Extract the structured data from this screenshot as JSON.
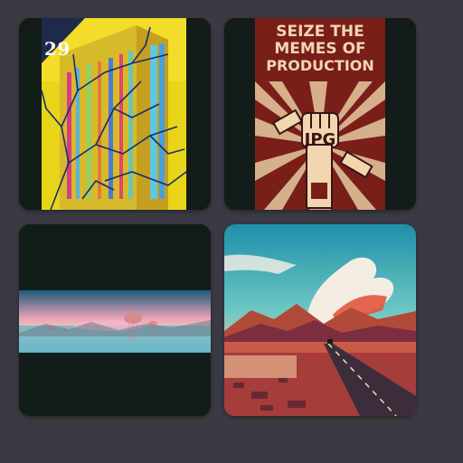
{
  "gallery": {
    "items": [
      {
        "name": "building-art",
        "badge_number": "29"
      },
      {
        "name": "propaganda-poster",
        "poster_lines": [
          "SEIZE THE",
          "MEMES OF",
          "PRODUCTION"
        ],
        "fist_text": "JPG"
      },
      {
        "name": "jellyfish-panorama"
      },
      {
        "name": "desert-road"
      }
    ]
  },
  "colors": {
    "page_background": "#3a3a42",
    "tile_background": "#131c18",
    "poster_red": "#7a1e1a",
    "poster_cream": "#f1d6b0",
    "building_yellow": "#e8d51a",
    "sky_teal": "#2fb7c4"
  }
}
